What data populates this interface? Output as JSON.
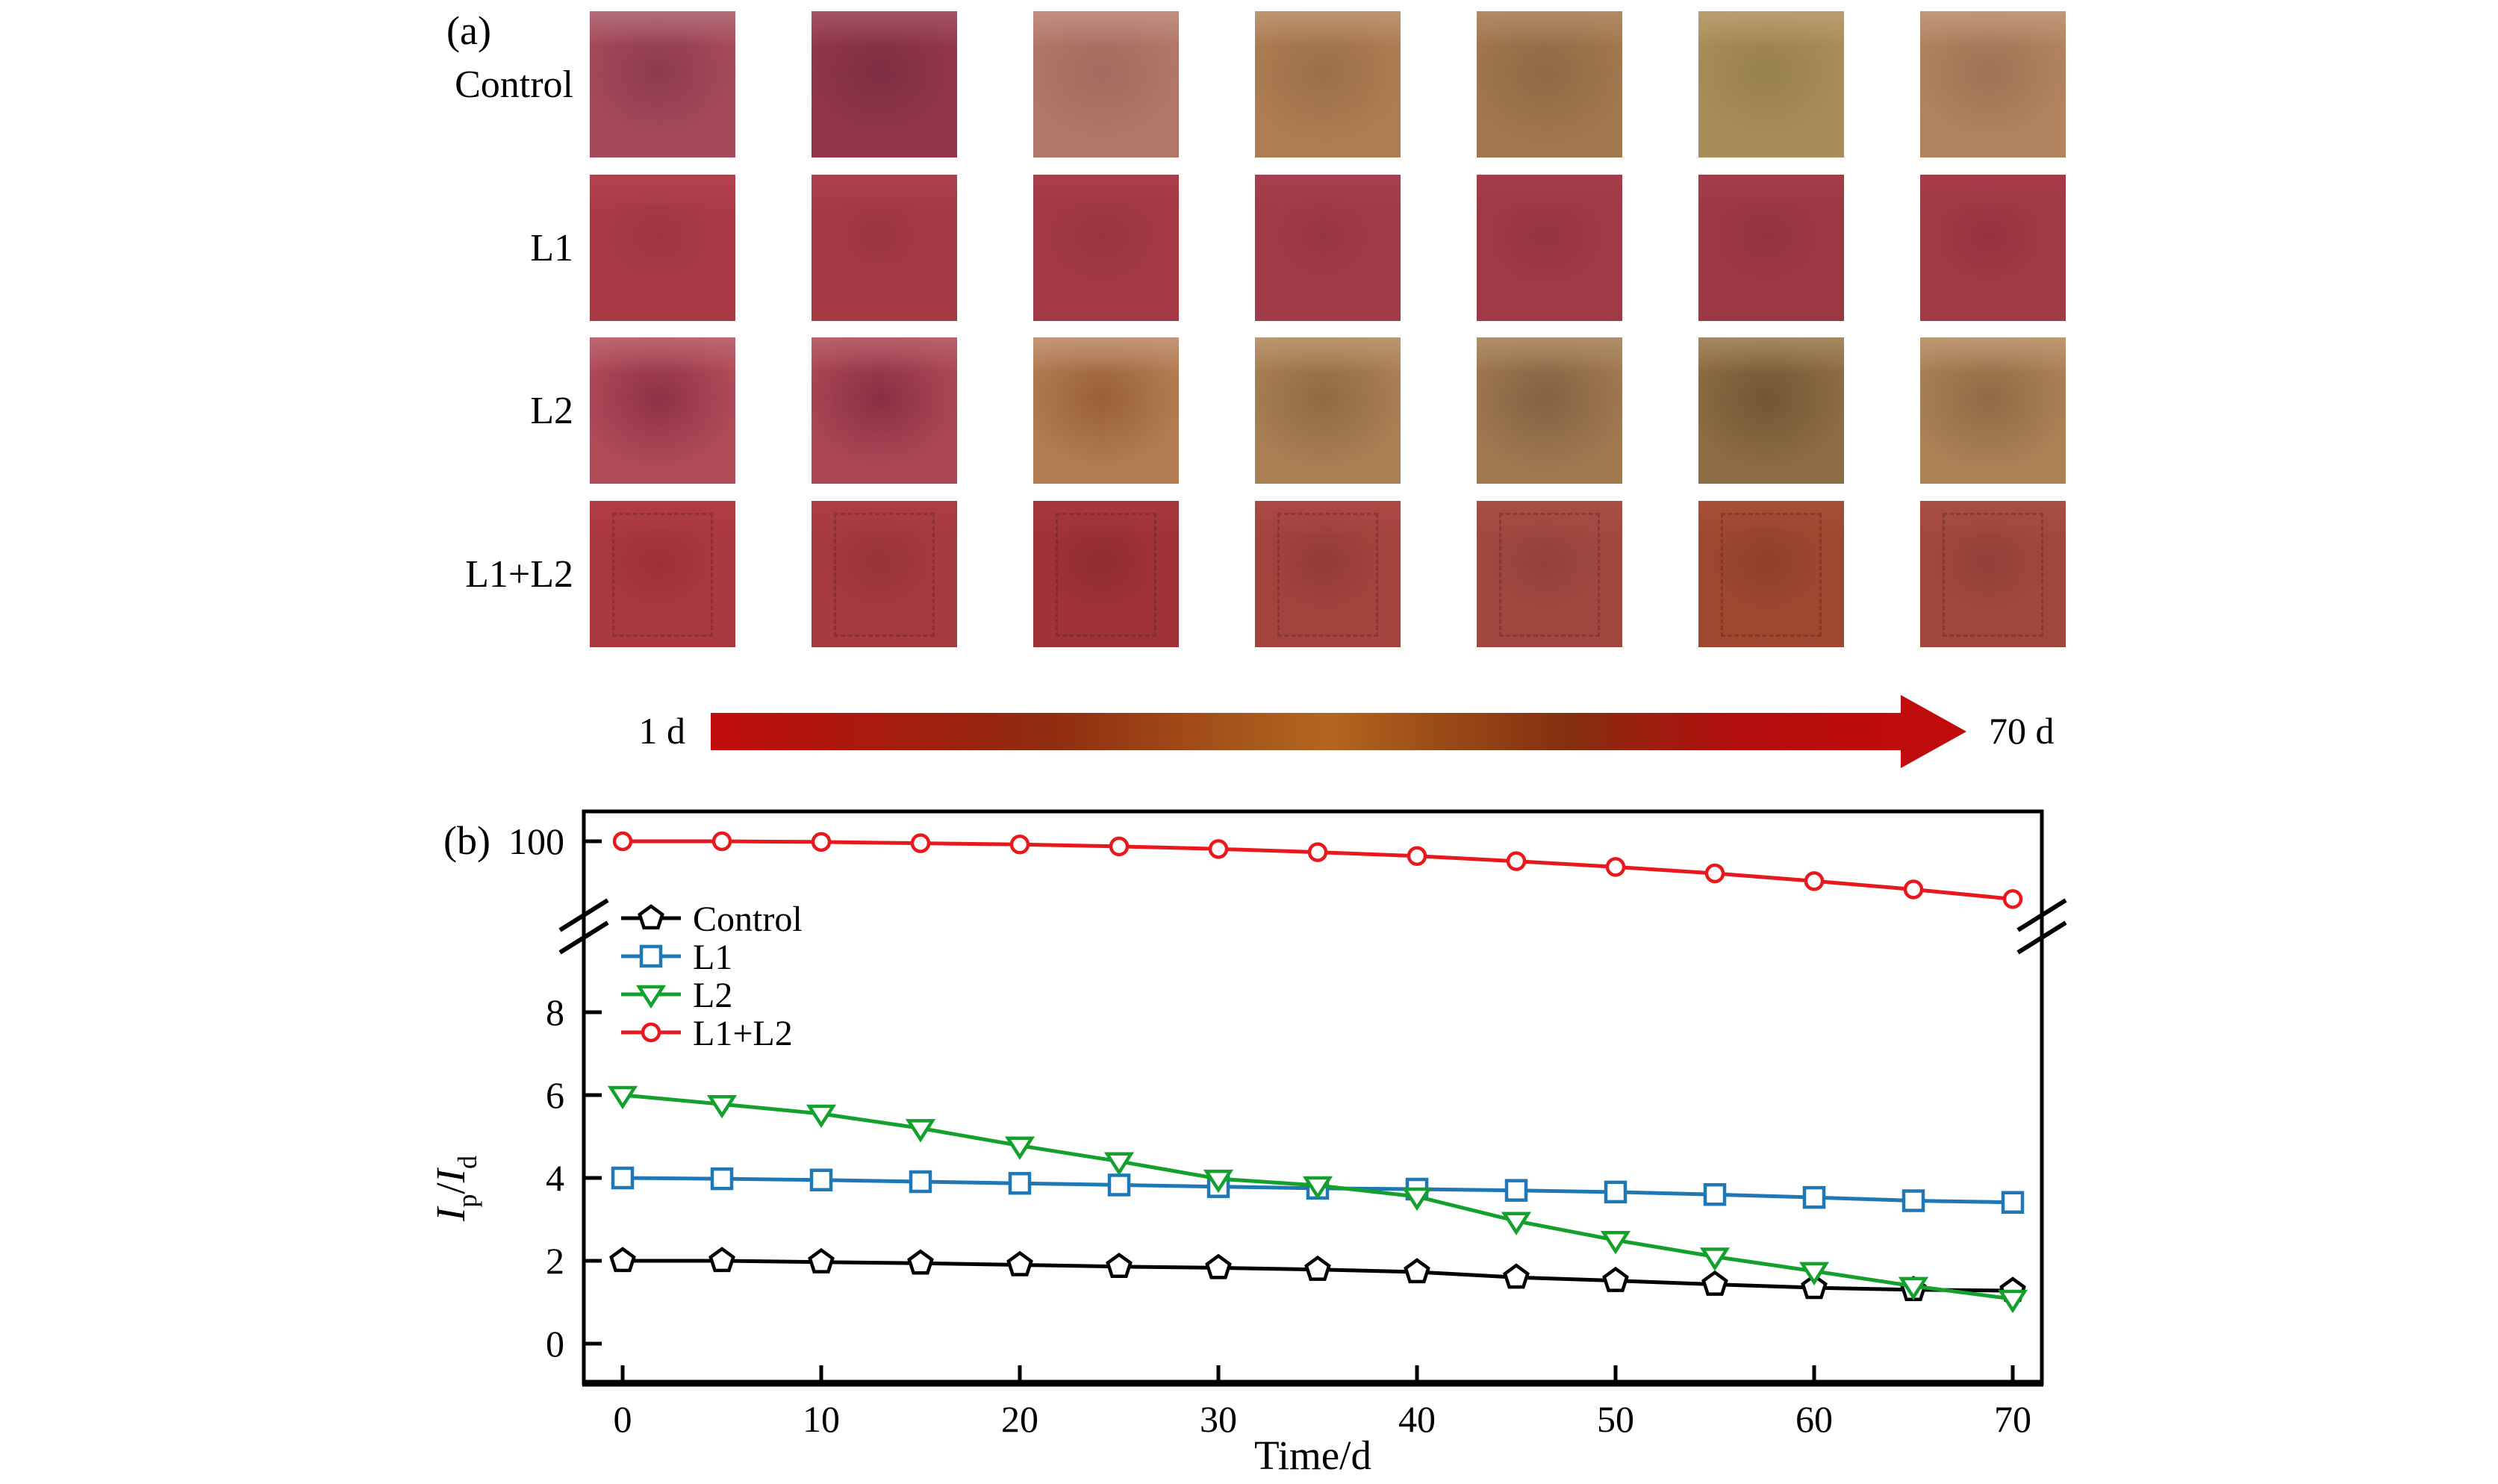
{
  "panel_a": {
    "label": "(a)",
    "rows": [
      {
        "label": "Control",
        "blotch_fade": 74,
        "dashed_marks": false,
        "cells": [
          [
            "#b5747f",
            "#8d3a4e",
            "#a54a5a"
          ],
          [
            "#a65a6d",
            "#7e2f43",
            "#93364b"
          ],
          [
            "#c49488",
            "#a66a5e",
            "#b17768"
          ],
          [
            "#c09a77",
            "#9c7047",
            "#ad7c52"
          ],
          [
            "#b38e69",
            "#8f6a44",
            "#a1774e"
          ],
          [
            "#bca274",
            "#97804c",
            "#a98d58"
          ],
          [
            "#c39b80",
            "#9d7354",
            "#b1835f"
          ]
        ]
      },
      {
        "label": "L1",
        "blotch_fade": 52,
        "dashed_marks": false,
        "cells": [
          [
            "#b24450",
            "#9e3540",
            "#a83b45"
          ],
          [
            "#ad4250",
            "#9b3540",
            "#a53a45"
          ],
          [
            "#aa3f4d",
            "#983540",
            "#a23944"
          ],
          [
            "#a93f50",
            "#973544",
            "#a13a49"
          ],
          [
            "#a63e4d",
            "#953440",
            "#9e3945"
          ],
          [
            "#a43d4b",
            "#933340",
            "#9c3843"
          ],
          [
            "#a83c4a",
            "#96323e",
            "#a03a45"
          ]
        ]
      },
      {
        "label": "L2",
        "blotch_fade": 76,
        "dashed_marks": false,
        "cells": [
          [
            "#bd6a74",
            "#8e3145",
            "#b04c5a"
          ],
          [
            "#b96470",
            "#892f43",
            "#ac4855"
          ],
          [
            "#c49a7d",
            "#9a6038",
            "#b27d52"
          ],
          [
            "#bd9a74",
            "#8f6b42",
            "#aa7f54"
          ],
          [
            "#b29270",
            "#836343",
            "#9f7850"
          ],
          [
            "#a98c66",
            "#715634",
            "#8d6d44"
          ],
          [
            "#c09c79",
            "#8f6b44",
            "#ab8156"
          ]
        ]
      },
      {
        "label": "L1+L2",
        "blotch_fade": 56,
        "dashed_marks": true,
        "cells": [
          [
            "#b23e44",
            "#9c3038",
            "#aa3840"
          ],
          [
            "#ae3d44",
            "#98333a",
            "#a63a41"
          ],
          [
            "#a83840",
            "#902c33",
            "#a0323a"
          ],
          [
            "#ac4a46",
            "#933a35",
            "#a3433e"
          ],
          [
            "#aa4f46",
            "#92413a",
            "#a04840"
          ],
          [
            "#a84f38",
            "#8e3f29",
            "#9e4830"
          ],
          [
            "#aa4f43",
            "#914038",
            "#a1483d"
          ]
        ]
      }
    ],
    "arrow": {
      "start_label": "1 d",
      "end_label": "70 d",
      "head_color": "#c00c0c",
      "gradient_stops": [
        [
          "0%",
          "#c00c0c"
        ],
        [
          "28%",
          "#8f2b10"
        ],
        [
          "46%",
          "#a85a1c"
        ],
        [
          "52%",
          "#b4661f"
        ],
        [
          "60%",
          "#9c4e18"
        ],
        [
          "72%",
          "#842f10"
        ],
        [
          "86%",
          "#b30e0e"
        ],
        [
          "100%",
          "#c00c0c"
        ]
      ]
    }
  },
  "chart_data": {
    "type": "line",
    "panel_label": "(b)",
    "title": "",
    "xlabel": "Time/d",
    "ylabel": "I_p/I_d",
    "ylabel_parts": {
      "num_symbol": "I",
      "num_sub": "p",
      "divider": "/",
      "den_symbol": "I",
      "den_sub": "d"
    },
    "x": [
      0,
      5,
      10,
      15,
      20,
      25,
      30,
      35,
      40,
      45,
      50,
      55,
      60,
      65,
      70
    ],
    "x_ticks": [
      0,
      10,
      20,
      30,
      40,
      50,
      60,
      70
    ],
    "axis_broken": true,
    "y_ticks_lower": [
      0,
      2,
      4,
      6,
      8
    ],
    "y_ticks_upper": [
      100
    ],
    "ylim_lower": [
      -0.95,
      9.8
    ],
    "ylim_upper": [
      88.4,
      104.8
    ],
    "xlim": [
      -2,
      71.5
    ],
    "grid": false,
    "legend": {
      "labels": [
        "Control",
        "L1",
        "L2",
        "L1+L2"
      ],
      "position": "upper left inside plot, below axis break"
    },
    "series": [
      {
        "name": "Control",
        "color": "#000000",
        "marker": "pentagon",
        "segment": "lower",
        "values": [
          2.0,
          2.0,
          1.97,
          1.94,
          1.9,
          1.86,
          1.83,
          1.79,
          1.73,
          1.6,
          1.52,
          1.43,
          1.35,
          1.3,
          1.28
        ]
      },
      {
        "name": "L1",
        "color": "#1f77b4",
        "marker": "square",
        "segment": "lower",
        "values": [
          4.0,
          3.98,
          3.95,
          3.91,
          3.87,
          3.83,
          3.79,
          3.75,
          3.73,
          3.7,
          3.66,
          3.6,
          3.53,
          3.45,
          3.41
        ]
      },
      {
        "name": "L2",
        "color": "#14a02c",
        "marker": "triangle-down",
        "segment": "lower",
        "values": [
          6.0,
          5.78,
          5.55,
          5.2,
          4.78,
          4.4,
          3.98,
          3.82,
          3.55,
          2.96,
          2.5,
          2.1,
          1.75,
          1.39,
          1.08
        ]
      },
      {
        "name": "L1+L2",
        "color": "#e8191c",
        "marker": "circle",
        "segment": "upper",
        "values": [
          100,
          100,
          99.9,
          99.7,
          99.5,
          99.2,
          98.8,
          98.3,
          97.7,
          96.9,
          96.0,
          95.0,
          93.8,
          92.5,
          91.0
        ]
      }
    ]
  }
}
